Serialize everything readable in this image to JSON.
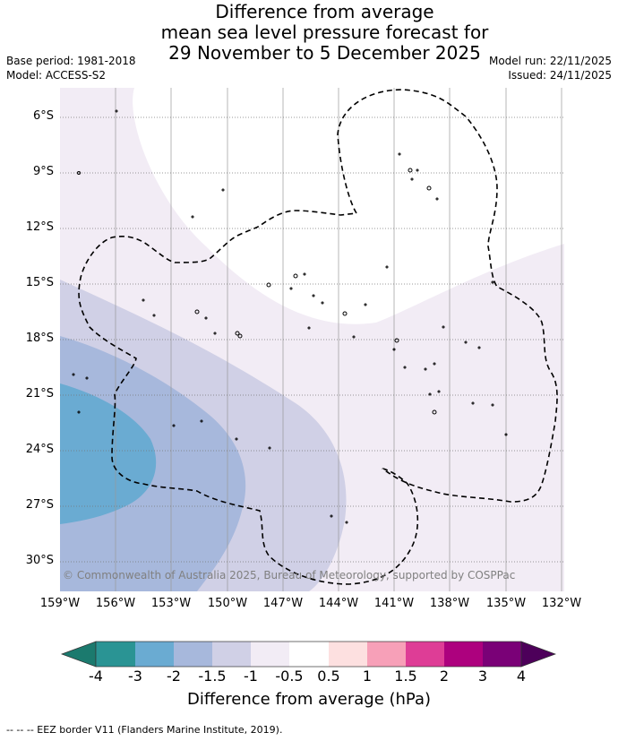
{
  "header": {
    "title_line1": "Difference from average",
    "title_line2": "mean sea level pressure forecast for",
    "title_line3": "29 November to 5 December 2025",
    "base_period": "Base period: 1981-2018",
    "model": "Model: ACCESS-S2",
    "model_run": "Model run: 22/11/2025",
    "issued": "Issued: 24/11/2025"
  },
  "map": {
    "lat_labels": [
      "6°S",
      "9°S",
      "12°S",
      "15°S",
      "18°S",
      "21°S",
      "24°S",
      "27°S",
      "30°S"
    ],
    "lon_labels": [
      "159°W",
      "156°W",
      "153°W",
      "150°W",
      "147°W",
      "144°W",
      "141°W",
      "138°W",
      "135°W",
      "132°W"
    ],
    "copyright": "© Commonwealth of Australia 2025, Bureau of Meteorology, supported by COSPPac"
  },
  "colorbar": {
    "labels": [
      "-4",
      "-3",
      "-2",
      "-1.5",
      "-1",
      "-0.5",
      "0.5",
      "1",
      "1.5",
      "2",
      "3",
      "4"
    ],
    "colors": [
      "#1b7a6e",
      "#2a9494",
      "#6aabd2",
      "#a7b8dc",
      "#d0d0e6",
      "#f2ecf5",
      "#ffffff",
      "#fde0e0",
      "#f7a0b8",
      "#de3d96",
      "#ad017e",
      "#7a0177",
      "#4d005a"
    ],
    "title": "Difference from average (hPa)"
  },
  "footnote": "--  --  -- EEZ border V11 (Flanders Marine Institute, 2019)."
}
